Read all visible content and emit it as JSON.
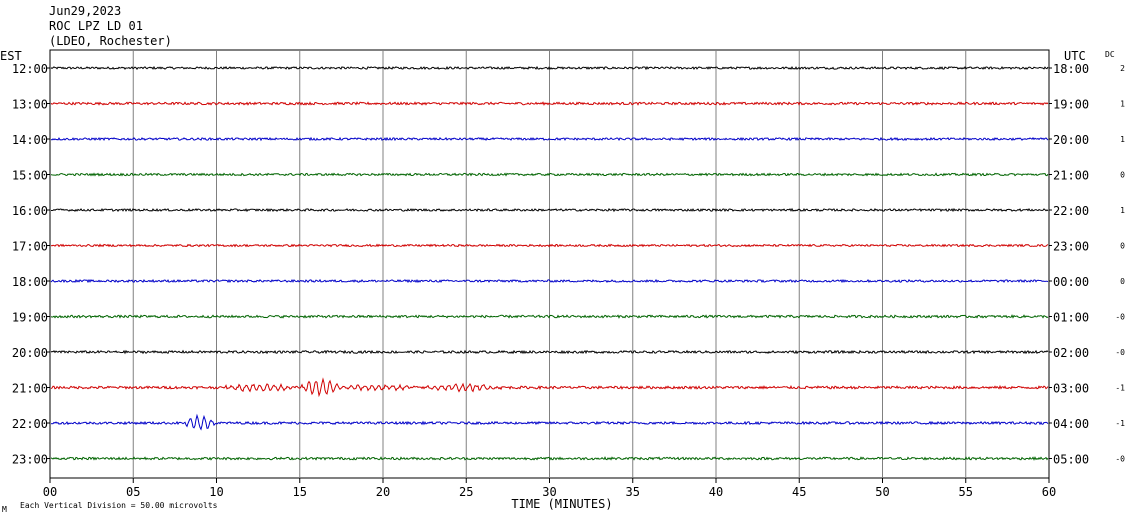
{
  "header": {
    "date": "Jun29,2023",
    "station": "ROC LPZ LD 01",
    "network": "(LDEO, Rochester)",
    "left_zone": "EST",
    "right_zone": "UTC",
    "dc_label": "DC"
  },
  "footer": {
    "scale_text": "Each Vertical Division =   50.00 microvolts",
    "corner_mark": "M"
  },
  "chart_data": {
    "type": "line",
    "xlabel": "TIME (MINUTES)",
    "xlim": [
      0,
      60
    ],
    "x_ticks": [
      "00",
      "05",
      "10",
      "15",
      "20",
      "25",
      "30",
      "35",
      "40",
      "45",
      "50",
      "55",
      "60"
    ],
    "grid": "vertical lines every 5 minutes",
    "trace_colors": [
      "#000000",
      "#d00000",
      "#0000c8",
      "#006400"
    ],
    "rows": [
      {
        "est": "12:00",
        "utc": "18:00",
        "dc": "2",
        "color": "#000000",
        "amp": 1.1,
        "events": []
      },
      {
        "est": "13:00",
        "utc": "19:00",
        "dc": "1",
        "color": "#d00000",
        "amp": 1.2,
        "events": []
      },
      {
        "est": "14:00",
        "utc": "20:00",
        "dc": "1",
        "color": "#0000c8",
        "amp": 1.1,
        "events": []
      },
      {
        "est": "15:00",
        "utc": "21:00",
        "dc": "0",
        "color": "#006400",
        "amp": 1.1,
        "events": []
      },
      {
        "est": "16:00",
        "utc": "22:00",
        "dc": "1",
        "color": "#000000",
        "amp": 1.1,
        "events": []
      },
      {
        "est": "17:00",
        "utc": "23:00",
        "dc": "0",
        "color": "#d00000",
        "amp": 1.0,
        "events": []
      },
      {
        "est": "18:00",
        "utc": "00:00",
        "dc": "0",
        "color": "#0000c8",
        "amp": 1.1,
        "events": []
      },
      {
        "est": "19:00",
        "utc": "01:00",
        "dc": "-0",
        "color": "#006400",
        "amp": 1.2,
        "events": []
      },
      {
        "est": "20:00",
        "utc": "02:00",
        "dc": "-0",
        "color": "#000000",
        "amp": 1.2,
        "events": []
      },
      {
        "est": "21:00",
        "utc": "03:00",
        "dc": "-1",
        "color": "#d00000",
        "amp": 1.3,
        "events": [
          {
            "start": 10.0,
            "end": 15.0,
            "amp": 3.0
          },
          {
            "start": 15.0,
            "end": 17.5,
            "amp": 7.5
          },
          {
            "start": 17.5,
            "end": 22.0,
            "amp": 2.4
          },
          {
            "start": 22.0,
            "end": 27.5,
            "amp": 2.8
          }
        ]
      },
      {
        "est": "22:00",
        "utc": "04:00",
        "dc": "-1",
        "color": "#0000c8",
        "amp": 1.2,
        "events": [
          {
            "start": 8.0,
            "end": 10.0,
            "amp": 7.0
          }
        ]
      },
      {
        "est": "23:00",
        "utc": "05:00",
        "dc": "-0",
        "color": "#006400",
        "amp": 1.2,
        "events": []
      }
    ]
  }
}
